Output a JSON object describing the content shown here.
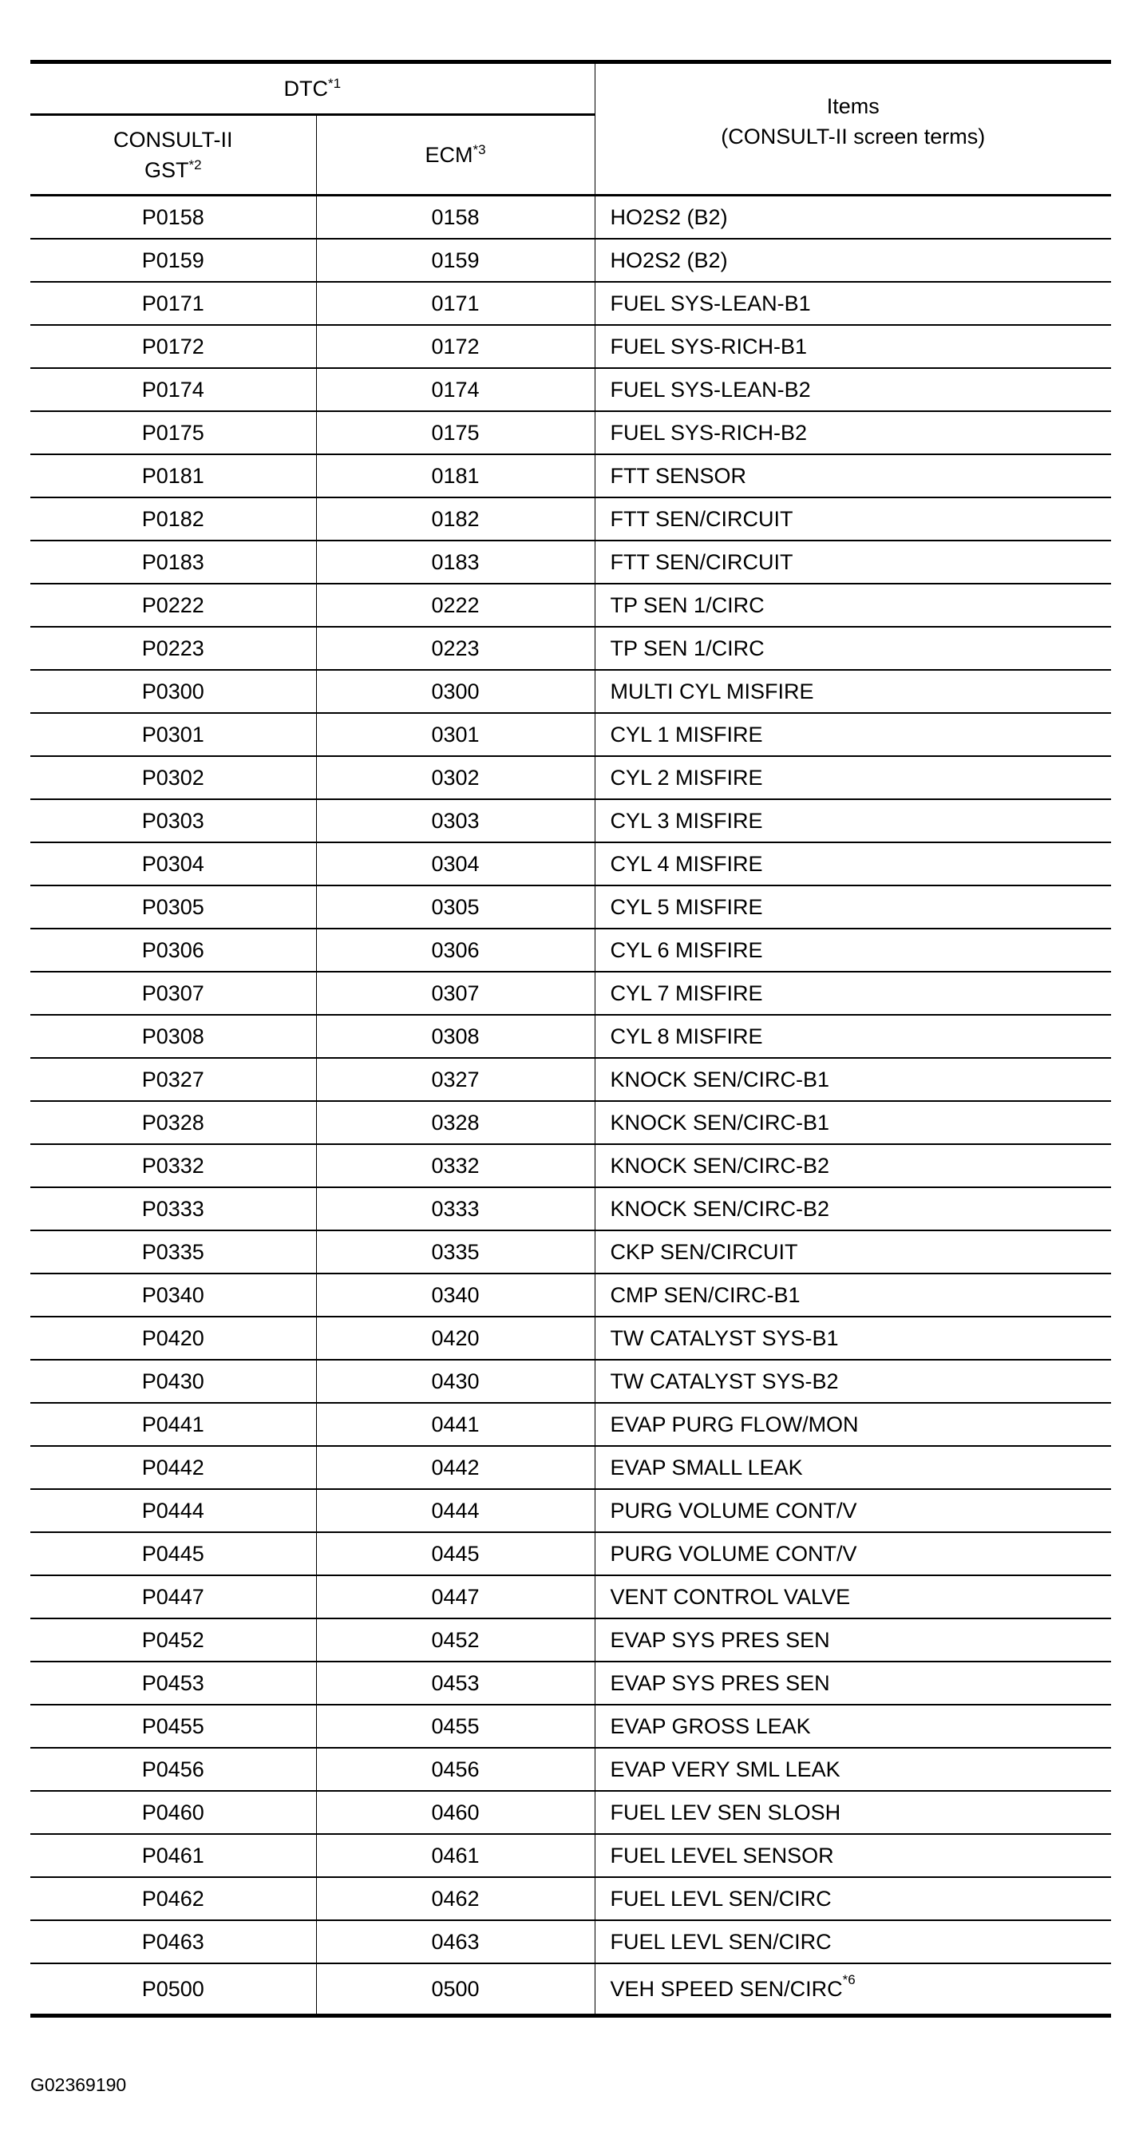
{
  "header": {
    "dtc": "DTC",
    "dtc_note": "*1",
    "consult_line1": "CONSULT-II",
    "consult_line2": "GST",
    "consult_note": "*2",
    "ecm": "ECM",
    "ecm_note": "*3",
    "items_line1": "Items",
    "items_line2": "(CONSULT-II screen terms)"
  },
  "rows": [
    [
      "P0158",
      "0158",
      "HO2S2 (B2)"
    ],
    [
      "P0159",
      "0159",
      "HO2S2 (B2)"
    ],
    [
      "P0171",
      "0171",
      "FUEL SYS-LEAN-B1"
    ],
    [
      "P0172",
      "0172",
      "FUEL SYS-RICH-B1"
    ],
    [
      "P0174",
      "0174",
      "FUEL SYS-LEAN-B2"
    ],
    [
      "P0175",
      "0175",
      "FUEL SYS-RICH-B2"
    ],
    [
      "P0181",
      "0181",
      "FTT SENSOR"
    ],
    [
      "P0182",
      "0182",
      "FTT SEN/CIRCUIT"
    ],
    [
      "P0183",
      "0183",
      "FTT SEN/CIRCUIT"
    ],
    [
      "P0222",
      "0222",
      "TP SEN 1/CIRC"
    ],
    [
      "P0223",
      "0223",
      "TP SEN 1/CIRC"
    ],
    [
      "P0300",
      "0300",
      "MULTI CYL MISFIRE"
    ],
    [
      "P0301",
      "0301",
      "CYL 1 MISFIRE"
    ],
    [
      "P0302",
      "0302",
      "CYL 2 MISFIRE"
    ],
    [
      "P0303",
      "0303",
      "CYL 3 MISFIRE"
    ],
    [
      "P0304",
      "0304",
      "CYL 4 MISFIRE"
    ],
    [
      "P0305",
      "0305",
      "CYL 5 MISFIRE"
    ],
    [
      "P0306",
      "0306",
      "CYL 6 MISFIRE"
    ],
    [
      "P0307",
      "0307",
      "CYL 7 MISFIRE"
    ],
    [
      "P0308",
      "0308",
      "CYL 8 MISFIRE"
    ],
    [
      "P0327",
      "0327",
      "KNOCK SEN/CIRC-B1"
    ],
    [
      "P0328",
      "0328",
      "KNOCK SEN/CIRC-B1"
    ],
    [
      "P0332",
      "0332",
      "KNOCK SEN/CIRC-B2"
    ],
    [
      "P0333",
      "0333",
      "KNOCK SEN/CIRC-B2"
    ],
    [
      "P0335",
      "0335",
      "CKP SEN/CIRCUIT"
    ],
    [
      "P0340",
      "0340",
      "CMP SEN/CIRC-B1"
    ],
    [
      "P0420",
      "0420",
      "TW CATALYST SYS-B1"
    ],
    [
      "P0430",
      "0430",
      "TW CATALYST SYS-B2"
    ],
    [
      "P0441",
      "0441",
      "EVAP PURG FLOW/MON"
    ],
    [
      "P0442",
      "0442",
      "EVAP SMALL LEAK"
    ],
    [
      "P0444",
      "0444",
      "PURG VOLUME CONT/V"
    ],
    [
      "P0445",
      "0445",
      "PURG VOLUME CONT/V"
    ],
    [
      "P0447",
      "0447",
      "VENT CONTROL VALVE"
    ],
    [
      "P0452",
      "0452",
      "EVAP SYS PRES SEN"
    ],
    [
      "P0453",
      "0453",
      "EVAP SYS PRES SEN"
    ],
    [
      "P0455",
      "0455",
      "EVAP GROSS LEAK"
    ],
    [
      "P0456",
      "0456",
      "EVAP VERY SML LEAK"
    ],
    [
      "P0460",
      "0460",
      "FUEL LEV SEN SLOSH"
    ],
    [
      "P0461",
      "0461",
      "FUEL LEVEL SENSOR"
    ],
    [
      "P0462",
      "0462",
      "FUEL LEVL SEN/CIRC"
    ],
    [
      "P0463",
      "0463",
      "FUEL LEVL SEN/CIRC"
    ],
    [
      "P0500",
      "0500",
      "VEH SPEED SEN/CIRC"
    ]
  ],
  "last_row_note": "*6",
  "figure_id": "G02369190"
}
